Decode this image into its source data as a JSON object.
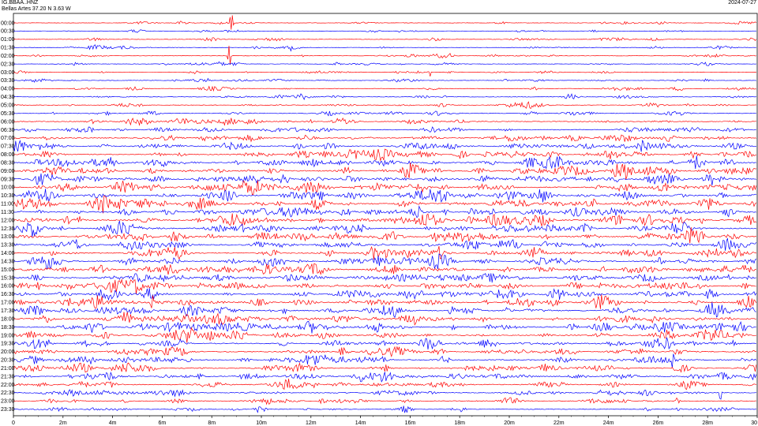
{
  "header": {
    "station_code": "IG.BBAA..HNZ",
    "station_location": "Bellas Artes  37.20 N 3.63 W",
    "date": "2024-07-27"
  },
  "chart_data": {
    "type": "line",
    "title": "",
    "xlabel": "",
    "ylabel": "",
    "x_ticks": [
      "0",
      "2m",
      "4m",
      "6m",
      "8m",
      "10m",
      "12m",
      "14m",
      "16m",
      "18m",
      "20m",
      "22m",
      "24m",
      "26m",
      "28m",
      "30"
    ],
    "xlim": [
      0,
      30
    ],
    "row_labels": [
      "00:00",
      "00:30",
      "01:00",
      "01:30",
      "02:00",
      "02:30",
      "03:00",
      "03:30",
      "04:00",
      "04:30",
      "05:00",
      "05:30",
      "06:00",
      "06:30",
      "07:00",
      "07:30",
      "08:00",
      "08:30",
      "09:00",
      "09:30",
      "10:00",
      "10:30",
      "11:00",
      "11:30",
      "12:00",
      "12:30",
      "13:00",
      "13:30",
      "14:00",
      "14:30",
      "15:00",
      "15:30",
      "16:00",
      "16:30",
      "17:00",
      "17:30",
      "18:00",
      "18:30",
      "19:00",
      "19:30",
      "20:00",
      "20:30",
      "21:00",
      "21:30",
      "22:00",
      "22:30",
      "23:00",
      "23:30"
    ],
    "trace_colors": [
      "#ff0000",
      "#0000ff"
    ],
    "activity_level": [
      0.15,
      0.15,
      0.15,
      0.15,
      0.18,
      0.15,
      0.18,
      0.2,
      0.22,
      0.25,
      0.3,
      0.35,
      0.45,
      0.55,
      0.65,
      0.75,
      0.8,
      0.85,
      0.95,
      0.95,
      0.95,
      0.95,
      0.95,
      0.9,
      0.95,
      0.95,
      0.9,
      0.9,
      0.9,
      0.85,
      0.85,
      0.85,
      0.9,
      0.9,
      0.9,
      0.9,
      0.9,
      0.9,
      0.85,
      0.8,
      0.8,
      0.75,
      0.75,
      0.7,
      0.6,
      0.5,
      0.45,
      0.4
    ],
    "notable_spikes": [
      {
        "row": 0,
        "minute": 8.8,
        "amplitude": 30
      },
      {
        "row": 4,
        "minute": 8.7,
        "amplitude": 20
      },
      {
        "row": 6,
        "minute": 16.8,
        "amplitude": 6
      },
      {
        "row": 26,
        "minute": 6.4,
        "amplitude": 8
      },
      {
        "row": 34,
        "minute": 5.6,
        "amplitude": 12
      },
      {
        "row": 41,
        "minute": 26.6,
        "amplitude": 14
      },
      {
        "row": 46,
        "minute": 26.8,
        "amplitude": 18
      },
      {
        "row": 45,
        "minute": 28.5,
        "amplitude": 20
      }
    ]
  }
}
